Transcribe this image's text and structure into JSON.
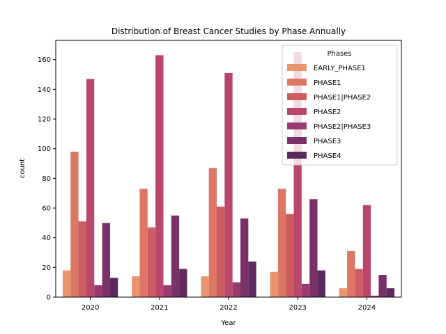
{
  "chart_data": {
    "type": "bar",
    "title": "Distribution of Breast Cancer Studies by Phase Annually",
    "xlabel": "Year",
    "ylabel": "count",
    "categories": [
      "2020",
      "2021",
      "2022",
      "2023",
      "2024"
    ],
    "ylim": [
      0,
      173
    ],
    "yticks": [
      0,
      20,
      40,
      60,
      80,
      100,
      120,
      140,
      160
    ],
    "legend": {
      "title": "Phases",
      "placement": "top-right"
    },
    "series": [
      {
        "name": "EARLY_PHASE1",
        "color": "#e8956f",
        "values": [
          18,
          14,
          14,
          17,
          6
        ]
      },
      {
        "name": "PHASE1",
        "color": "#db7764",
        "values": [
          98,
          73,
          87,
          73,
          31
        ]
      },
      {
        "name": "PHASE1|PHASE2",
        "color": "#cd5c61",
        "values": [
          51,
          47,
          61,
          56,
          19
        ]
      },
      {
        "name": "PHASE2",
        "color": "#b8476b",
        "values": [
          147,
          163,
          151,
          165,
          62
        ]
      },
      {
        "name": "PHASE2|PHASE3",
        "color": "#9a3b6e",
        "values": [
          8,
          8,
          10,
          9,
          1
        ]
      },
      {
        "name": "PHASE3",
        "color": "#7a3068",
        "values": [
          50,
          55,
          53,
          66,
          15
        ]
      },
      {
        "name": "PHASE4",
        "color": "#5c2a5e",
        "values": [
          13,
          19,
          24,
          18,
          6
        ]
      }
    ]
  }
}
